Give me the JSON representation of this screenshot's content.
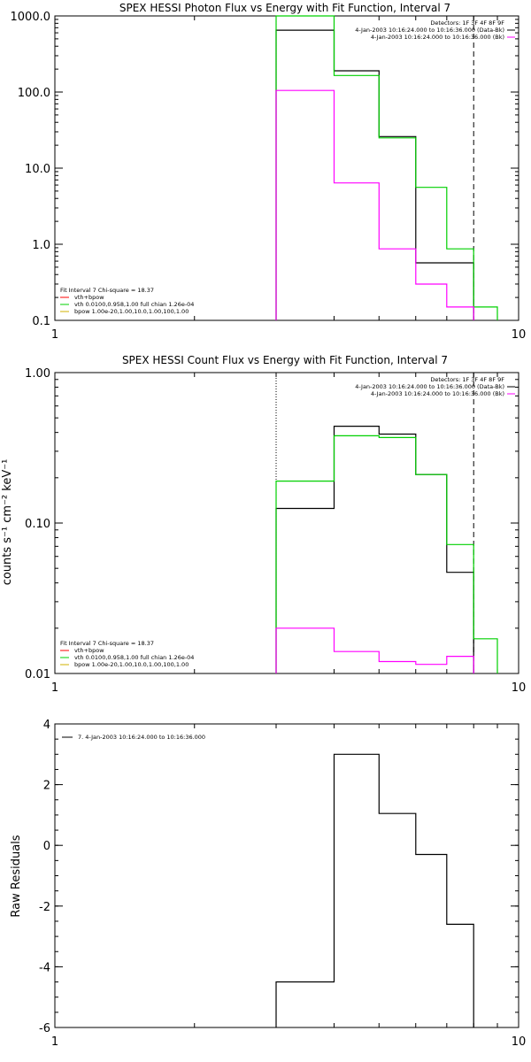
{
  "colors": {
    "data": "#000000",
    "model": "#00d000",
    "background": "#ff00ff",
    "total": "#ff0000",
    "vth": "#00d000",
    "bpow": "#d0b000"
  },
  "chart_data": [
    {
      "type": "line",
      "step": true,
      "title": "SPEX HESSI Photon Flux vs Energy with Fit Function, Interval 7",
      "xlabel": "",
      "ylabel": "",
      "xscale": "log",
      "yscale": "log",
      "xlim": [
        1,
        10
      ],
      "ylim": [
        0.1,
        1000
      ],
      "x_ticks": [
        "1",
        "10"
      ],
      "y_ticks": [
        "1000.0",
        "100.0",
        "10.0",
        "1.0",
        "0.1"
      ],
      "y_tick_values": [
        1000,
        100,
        10,
        1,
        0.1
      ],
      "vlines": [
        {
          "x": 3.0,
          "style": "dotted"
        },
        {
          "x": 8.0,
          "style": "dashed"
        }
      ],
      "series": [
        {
          "color_key": "data",
          "bins": [
            3,
            4,
            5,
            6,
            7,
            8
          ],
          "values": [
            650,
            190,
            26,
            0.57,
            0.57
          ]
        },
        {
          "color_key": "model",
          "bins": [
            3,
            4,
            5,
            6,
            7,
            8,
            9
          ],
          "values": [
            1000,
            165,
            25,
            5.6,
            0.87,
            0.15
          ]
        },
        {
          "color_key": "background",
          "bins": [
            3,
            4,
            5,
            6,
            7,
            8
          ],
          "values": [
            105,
            6.4,
            0.87,
            0.3,
            0.15
          ]
        }
      ],
      "legend_right": {
        "lines": [
          "Detectors: 1F 3F 4F 8F 9F",
          "4-Jan-2003 10:16:24.000 to 10:16:36.000 (Data-Bk)",
          "4-Jan-2003 10:16:24.000 to 10:16:36.000 (Bk)"
        ],
        "colors": [
          "",
          "data",
          "background"
        ]
      },
      "legend_left": {
        "lines": [
          "Fit Interval 7   Chi-square = 18.37",
          "vth+bpow",
          "vth 0.0100,0.958,1.00  full chian 1.26e-04",
          "bpow 1.00e-20,1.00,10.0,1.00,100,1.00"
        ],
        "colors": [
          "",
          "total",
          "vth",
          "bpow"
        ]
      }
    },
    {
      "type": "line",
      "step": true,
      "title": "SPEX HESSI Count Flux vs Energy with Fit Function, Interval 7",
      "xlabel": "",
      "ylabel": "counts s⁻¹ cm⁻² keV⁻¹",
      "xscale": "log",
      "yscale": "log",
      "xlim": [
        1,
        10
      ],
      "ylim": [
        0.01,
        1.0
      ],
      "x_ticks": [
        "1",
        "10"
      ],
      "y_ticks": [
        "1.00",
        "0.10",
        "0.01"
      ],
      "y_tick_values": [
        1.0,
        0.1,
        0.01
      ],
      "vlines": [
        {
          "x": 3.0,
          "style": "dotted"
        },
        {
          "x": 8.0,
          "style": "dashed"
        }
      ],
      "series": [
        {
          "color_key": "data",
          "bins": [
            3,
            4,
            5,
            6,
            7,
            8
          ],
          "values": [
            0.125,
            0.44,
            0.39,
            0.21,
            0.047
          ]
        },
        {
          "color_key": "model",
          "bins": [
            3,
            4,
            5,
            6,
            7,
            8,
            9
          ],
          "values": [
            0.19,
            0.38,
            0.37,
            0.21,
            0.072,
            0.017
          ]
        },
        {
          "color_key": "background",
          "bins": [
            3,
            4,
            5,
            6,
            7,
            8
          ],
          "values": [
            0.02,
            0.014,
            0.012,
            0.0115,
            0.013
          ]
        }
      ],
      "legend_right": {
        "lines": [
          "Detectors: 1F 3F 4F 8F 9F",
          "4-Jan-2003 10:16:24.000 to 10:16:36.000 (Data-Bk)",
          "4-Jan-2003 10:16:24.000 to 10:16:36.000 (Bk)"
        ],
        "colors": [
          "",
          "data",
          "background"
        ]
      },
      "legend_left": {
        "lines": [
          "Fit Interval 7   Chi-square = 18.37",
          "vth+bpow",
          "vth 0.0100,0.958,1.00  full chian 1.26e-04",
          "bpow 1.00e-20,1.00,10.0,1.00,100,1.00"
        ],
        "colors": [
          "",
          "total",
          "vth",
          "bpow"
        ]
      }
    },
    {
      "type": "line",
      "step": true,
      "title": "",
      "xlabel": "",
      "ylabel": "Raw Residuals",
      "xscale": "log",
      "yscale": "linear",
      "xlim": [
        1,
        10
      ],
      "ylim": [
        -6,
        4
      ],
      "x_ticks": [
        "1",
        "10"
      ],
      "y_ticks": [
        "4",
        "2",
        "0",
        "-2",
        "-4",
        "-6"
      ],
      "y_tick_values": [
        4,
        2,
        0,
        -2,
        -4,
        -6
      ],
      "vlines": [],
      "series": [
        {
          "color_key": "data",
          "bins": [
            3,
            4,
            5,
            6,
            7,
            8
          ],
          "values": [
            -4.5,
            3.0,
            1.05,
            -0.3,
            -2.6
          ],
          "drop_to_bottom": true
        }
      ],
      "legend_left_top": {
        "lines": [
          "7.  4-Jan-2003 10:16:24.000 to 10:16:36.000"
        ],
        "colors": [
          "data"
        ]
      }
    }
  ]
}
